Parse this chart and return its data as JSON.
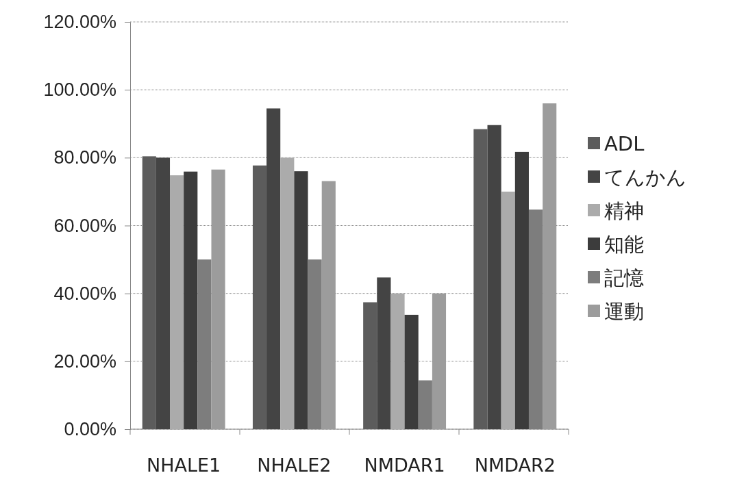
{
  "chart_data": {
    "type": "bar",
    "categories": [
      "NHALE1",
      "NHALE2",
      "NMDAR1",
      "NMDAR2"
    ],
    "series": [
      {
        "name": "ADL",
        "color": "#5c5c5c",
        "values": [
          80.4,
          77.7,
          37.4,
          88.4
        ]
      },
      {
        "name": "てんかん",
        "color": "#444444",
        "values": [
          80.0,
          94.5,
          44.7,
          89.6
        ]
      },
      {
        "name": "精神",
        "color": "#ababab",
        "values": [
          74.8,
          80.0,
          40.0,
          70.0
        ]
      },
      {
        "name": "知能",
        "color": "#3c3c3c",
        "values": [
          75.9,
          76.0,
          33.7,
          81.7
        ]
      },
      {
        "name": "記憶",
        "color": "#7d7d7d",
        "values": [
          50.0,
          50.0,
          14.4,
          64.7
        ]
      },
      {
        "name": "運動",
        "color": "#9c9c9c",
        "values": [
          76.5,
          73.1,
          40.0,
          96.0
        ]
      }
    ],
    "ylim": [
      0,
      120
    ],
    "yticks": [
      {
        "value": 0,
        "label": "0.00%"
      },
      {
        "value": 20,
        "label": "20.00%"
      },
      {
        "value": 40,
        "label": "40.00%"
      },
      {
        "value": 60,
        "label": "60.00%"
      },
      {
        "value": 80,
        "label": "80.00%"
      },
      {
        "value": 100,
        "label": "100.00%"
      },
      {
        "value": 120,
        "label": "120.00%"
      }
    ],
    "grid": "y",
    "legend": "right"
  }
}
